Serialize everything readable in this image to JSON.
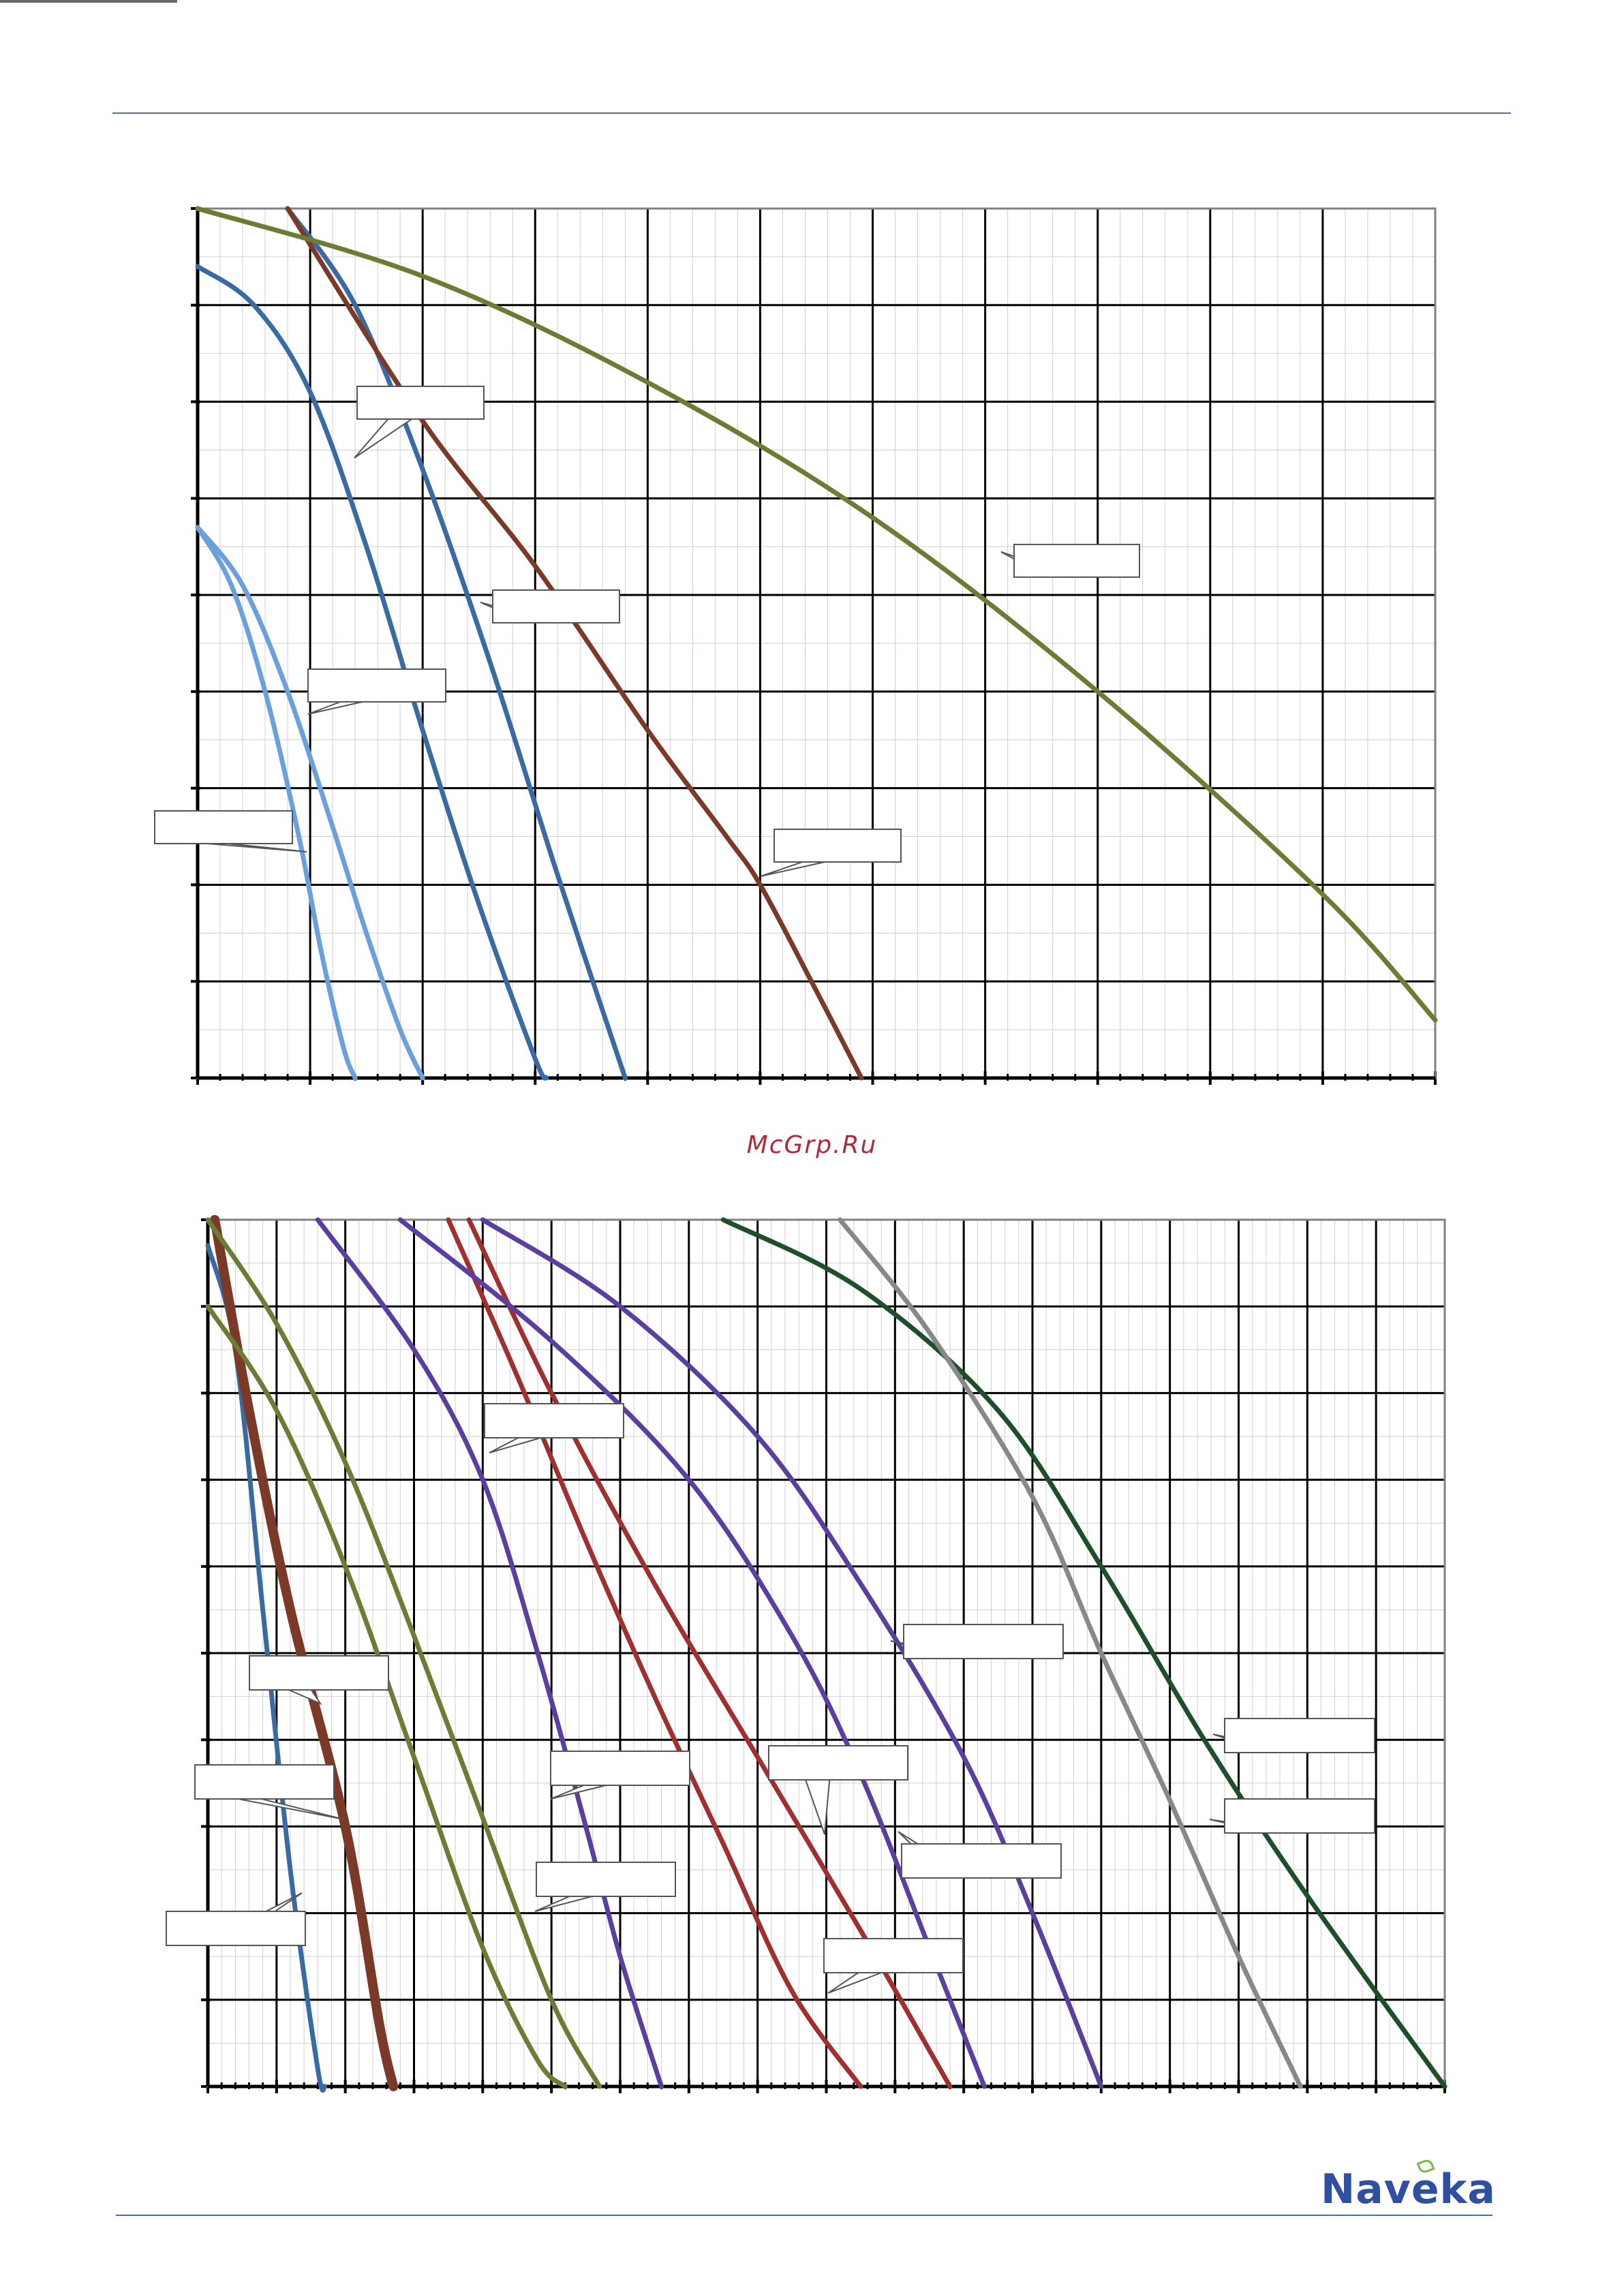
{
  "watermark": "McGrp.Ru",
  "logo": {
    "text": "Naveka",
    "accent_color": "#7ab648",
    "brand_color": "#2f4fa0"
  },
  "chart_data": [
    {
      "type": "line",
      "title": "",
      "xlabel": "",
      "ylabel": "",
      "xlim": [
        0,
        11
      ],
      "ylim": [
        0,
        9
      ],
      "grid": true,
      "x_ticks_major": 11,
      "y_ticks_major": 9,
      "series": [
        {
          "color": "#6aa0dc",
          "label": "",
          "x": [
            0,
            0.3,
            0.6,
            0.9,
            1.1,
            1.3,
            1.4
          ],
          "y": [
            5.7,
            5.1,
            4.0,
            2.5,
            1.3,
            0.3,
            0
          ]
        },
        {
          "color": "#6aa0dc",
          "label": "",
          "x": [
            0,
            0.4,
            0.8,
            1.2,
            1.5,
            1.8,
            2.0
          ],
          "y": [
            5.7,
            5.1,
            4.0,
            2.6,
            1.5,
            0.5,
            0
          ]
        },
        {
          "color": "#3a6aa3",
          "label": "",
          "x": [
            0,
            0.5,
            1.0,
            1.5,
            2.0,
            2.5,
            3.0,
            3.1
          ],
          "y": [
            8.4,
            8.0,
            7.1,
            5.5,
            3.6,
            1.8,
            0.2,
            0
          ]
        },
        {
          "color": "#3a6aa3",
          "label": "",
          "x": [
            0.8,
            1.4,
            2.0,
            2.6,
            3.2,
            3.8
          ],
          "y": [
            9.0,
            8.0,
            6.3,
            4.3,
            2.1,
            0
          ]
        },
        {
          "color": "#7b3a28",
          "label": "",
          "x": [
            0.8,
            2.0,
            3.0,
            4.0,
            4.7,
            5.0,
            5.5,
            5.9
          ],
          "y": [
            9.0,
            6.8,
            5.3,
            3.6,
            2.5,
            2.0,
            0.9,
            0
          ]
        },
        {
          "color": "#6b7d34",
          "label": "",
          "x": [
            0,
            2,
            4,
            6,
            8,
            10,
            11
          ],
          "y": [
            9.0,
            8.3,
            7.2,
            5.8,
            4.0,
            1.9,
            0.6
          ]
        }
      ],
      "callouts": [
        "",
        "",
        "",
        "",
        "",
        ""
      ]
    },
    {
      "type": "line",
      "title": "",
      "xlabel": "",
      "ylabel": "",
      "xlim": [
        0,
        18
      ],
      "ylim": [
        0,
        10
      ],
      "grid": true,
      "x_ticks_major": 18,
      "y_ticks_major": 10,
      "series": [
        {
          "color": "#3a6aa3",
          "label": "",
          "x": [
            0,
            0.4,
            0.8,
            1.2,
            1.6,
            1.7
          ],
          "y": [
            9.7,
            8.5,
            5.5,
            2.5,
            0.2,
            0
          ]
        },
        {
          "color": "#7b3a28",
          "label": "",
          "x": [
            0.1,
            0.6,
            1.2,
            2.0,
            2.5,
            2.7
          ],
          "y": [
            10,
            7.8,
            5.5,
            3.0,
            0.7,
            0
          ]
        },
        {
          "color": "#6b7d34",
          "label": "",
          "x": [
            0,
            1.0,
            2.0,
            3.0,
            4.0,
            4.8,
            5.2
          ],
          "y": [
            9.0,
            7.8,
            6.0,
            3.8,
            1.6,
            0.3,
            0
          ]
        },
        {
          "color": "#6b7d34",
          "label": "",
          "x": [
            0,
            1.0,
            2.0,
            3.0,
            4.0,
            5.0,
            5.7
          ],
          "y": [
            10,
            8.8,
            7.2,
            5.2,
            3.1,
            1.0,
            0
          ]
        },
        {
          "color": "#5a3fa0",
          "label": "",
          "x": [
            1.6,
            3.0,
            4.0,
            4.8,
            5.5,
            6.0,
            6.6
          ],
          "y": [
            10,
            8.5,
            7.0,
            5.0,
            3.0,
            1.5,
            0
          ]
        },
        {
          "color": "#a03030",
          "label": "",
          "x": [
            3.5,
            4.5,
            5.5,
            6.5,
            7.5,
            8.5,
            9.5
          ],
          "y": [
            10,
            8.2,
            6.3,
            4.5,
            2.8,
            1.1,
            0
          ]
        },
        {
          "color": "#a03030",
          "label": "",
          "x": [
            3.8,
            5.0,
            6.5,
            8.0,
            9.5,
            10.8
          ],
          "y": [
            10,
            8.0,
            5.8,
            3.8,
            1.8,
            0
          ]
        },
        {
          "color": "#5a3fa0",
          "label": "",
          "x": [
            2.8,
            5.0,
            7.0,
            8.5,
            9.5,
            10.5,
            11.3
          ],
          "y": [
            10,
            8.6,
            7.0,
            5.2,
            3.6,
            1.6,
            0
          ]
        },
        {
          "color": "#5a3fa0",
          "label": "",
          "x": [
            4.0,
            6.0,
            8.0,
            9.5,
            11.0,
            12.0,
            13.0
          ],
          "y": [
            10,
            9.0,
            7.5,
            5.8,
            3.8,
            2.0,
            0
          ]
        },
        {
          "color": "#1f4f2a",
          "label": "",
          "x": [
            7.5,
            9.5,
            11.5,
            13.0,
            14.5,
            16.0,
            18.0
          ],
          "y": [
            10,
            9.2,
            7.8,
            6.0,
            4.0,
            2.2,
            0
          ]
        },
        {
          "color": "#888888",
          "label": "",
          "x": [
            9.2,
            10.5,
            12.0,
            13.0,
            14.0,
            15.0,
            15.9
          ],
          "y": [
            10,
            8.7,
            6.8,
            5.0,
            3.3,
            1.5,
            0
          ]
        }
      ],
      "callouts": [
        "",
        "",
        "",
        "",
        "",
        "",
        "",
        "",
        "",
        "",
        ""
      ]
    }
  ]
}
